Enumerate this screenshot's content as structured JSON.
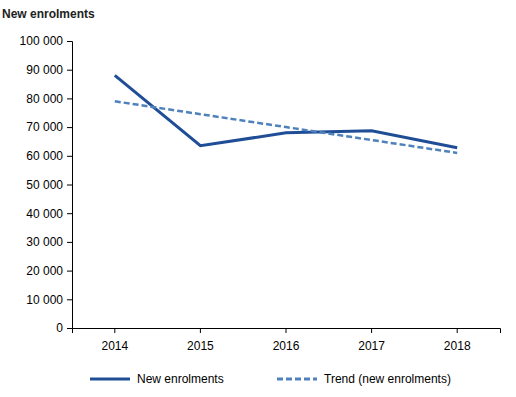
{
  "chart_data": {
    "type": "line",
    "title": "New enrolments",
    "categories": [
      "2014",
      "2015",
      "2016",
      "2017",
      "2018"
    ],
    "series": [
      {
        "name": "New enrolments",
        "color": "#1f4e96",
        "line_style": "solid",
        "values": [
          88000,
          63500,
          68000,
          68700,
          62800
        ]
      },
      {
        "name": "Trend (new enrolments)",
        "color": "#4f81bd",
        "line_style": "dashed",
        "values": [
          79000,
          74500,
          70000,
          65500,
          61000
        ]
      }
    ],
    "ylim": [
      0,
      100000
    ],
    "yticks": [
      0,
      {
        "value": 10000,
        "label": "10 000"
      },
      {
        "value": 20000,
        "label": "20 000"
      },
      {
        "value": 30000,
        "label": "30 000"
      },
      {
        "value": 40000,
        "label": "40 000"
      },
      {
        "value": 50000,
        "label": "50 000"
      },
      {
        "value": 60000,
        "label": "60 000"
      },
      {
        "value": 70000,
        "label": "70 000"
      },
      {
        "value": 80000,
        "label": "80 000"
      },
      {
        "value": 90000,
        "label": "90 000"
      },
      {
        "value": 100000,
        "label": "100 000"
      }
    ],
    "grid": false,
    "legend": "bottom"
  }
}
